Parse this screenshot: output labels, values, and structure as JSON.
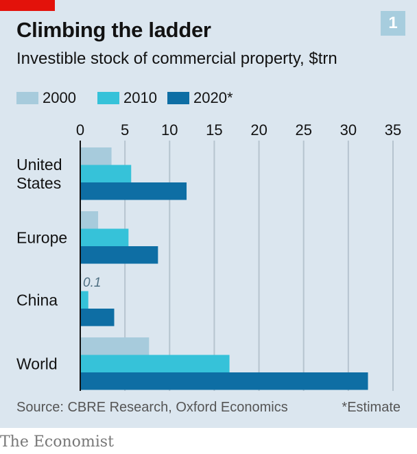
{
  "header": {
    "title": "Climbing the ladder",
    "subtitle": "Investible stock of commercial property, $trn",
    "chart_number": "1"
  },
  "footer": {
    "source": "Source: CBRE Research, Oxford Economics",
    "note": "*Estimate",
    "brand": "The Economist"
  },
  "colors": {
    "2000": "#a7cbdc",
    "2010": "#36c2d9",
    "2020": "#0e6ea4",
    "accent_red": "#e3120b",
    "background": "#dbe6ef",
    "gridline": "#b6c4cf"
  },
  "chart_data": {
    "type": "bar",
    "orientation": "horizontal",
    "title": "Climbing the ladder",
    "subtitle": "Investible stock of commercial property, $trn",
    "categories": [
      "United States",
      "Europe",
      "China",
      "World"
    ],
    "category_labels": [
      [
        "United",
        "States"
      ],
      [
        "Europe"
      ],
      [
        "China"
      ],
      [
        "World"
      ]
    ],
    "series": [
      {
        "name": "2000",
        "values": [
          3.5,
          2.0,
          0.1,
          7.7
        ]
      },
      {
        "name": "2010",
        "values": [
          5.7,
          5.4,
          0.9,
          16.7
        ]
      },
      {
        "name": "2020*",
        "values": [
          11.9,
          8.7,
          3.8,
          32.2
        ]
      }
    ],
    "annotations": [
      {
        "text": "0.1",
        "category": "China",
        "series": "2000"
      }
    ],
    "xlim": [
      0,
      35
    ],
    "xticks": [
      "0",
      "5",
      "10",
      "15",
      "20",
      "25",
      "30",
      "35"
    ],
    "grid": true,
    "legend": "top-left"
  }
}
